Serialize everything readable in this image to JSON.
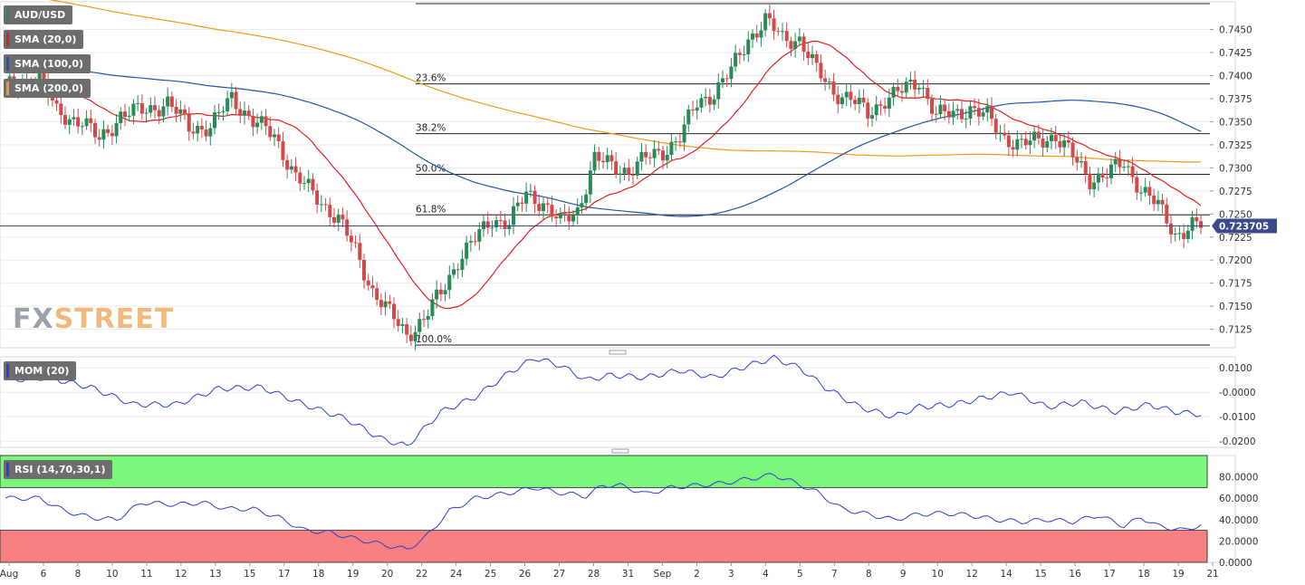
{
  "instrument": "AUD/USD",
  "watermark": {
    "part1": "FX",
    "part2": "STREET"
  },
  "colors": {
    "up": "#2a8a57",
    "down": "#d34848",
    "sma20": "#e02020",
    "sma100": "#2255aa",
    "sma200": "#f29a1c",
    "momentum": "#2b3fd6",
    "rsi": "#2b3fd6",
    "rsi_overbought_zone": "#7cf77c",
    "rsi_oversold_zone": "#f98080",
    "current_price_line": "#3a4a8a"
  },
  "legend": {
    "sma20": "SMA (20,0)",
    "sma100": "SMA (100,0)",
    "sma200": "SMA (200,0)",
    "momentum": "MOM (20)",
    "rsi": "RSI (14,70,30,1)"
  },
  "chart_data": [
    {
      "type": "candlestick",
      "title": "AUD/USD",
      "price_axis_ticks": [
        "0.7450",
        "0.7425",
        "0.7400",
        "0.7375",
        "0.7350",
        "0.7325",
        "0.7300",
        "0.7275",
        "0.7250",
        "0.7225",
        "0.7200",
        "0.7175",
        "0.7150",
        "0.7125"
      ],
      "ylim": [
        0.7105,
        0.748
      ],
      "current_price_label": "0.723705",
      "current_price": 0.723705,
      "fibonacci": {
        "high": 0.7478,
        "low": 0.7108,
        "levels": [
          {
            "label": "23.6%",
            "value": 0.7391
          },
          {
            "label": "38.2%",
            "value": 0.7337
          },
          {
            "label": "50.0%",
            "value": 0.7293
          },
          {
            "label": "61.8%",
            "value": 0.7249
          },
          {
            "label": "100.0%",
            "value": 0.7108
          }
        ]
      },
      "x_axis_labels": [
        "Aug",
        "6",
        "8",
        "10",
        "11",
        "12",
        "13",
        "15",
        "17",
        "18",
        "19",
        "20",
        "22",
        "24",
        "25",
        "26",
        "27",
        "28",
        "31",
        "Sep",
        "2",
        "3",
        "4",
        "5",
        "7",
        "8",
        "9",
        "10",
        "12",
        "14",
        "15",
        "16",
        "17",
        "18",
        "19",
        "21"
      ],
      "close_anchors": [
        [
          0,
          0.7386
        ],
        [
          8,
          0.7398
        ],
        [
          12,
          0.736
        ],
        [
          18,
          0.735
        ],
        [
          22,
          0.733
        ],
        [
          27,
          0.7357
        ],
        [
          32,
          0.7362
        ],
        [
          38,
          0.737
        ],
        [
          43,
          0.7345
        ],
        [
          48,
          0.7343
        ],
        [
          53,
          0.7377
        ],
        [
          58,
          0.735
        ],
        [
          63,
          0.7335
        ],
        [
          68,
          0.729
        ],
        [
          73,
          0.7268
        ],
        [
          78,
          0.7244
        ],
        [
          82,
          0.721
        ],
        [
          86,
          0.7167
        ],
        [
          90,
          0.7142
        ],
        [
          94,
          0.712
        ],
        [
          98,
          0.7135
        ],
        [
          102,
          0.7165
        ],
        [
          106,
          0.72
        ],
        [
          110,
          0.7222
        ],
        [
          114,
          0.7245
        ],
        [
          118,
          0.724
        ],
        [
          122,
          0.7272
        ],
        [
          126,
          0.7262
        ],
        [
          130,
          0.724
        ],
        [
          134,
          0.7254
        ],
        [
          138,
          0.731
        ],
        [
          142,
          0.7302
        ],
        [
          146,
          0.7297
        ],
        [
          150,
          0.731
        ],
        [
          154,
          0.7318
        ],
        [
          158,
          0.7333
        ],
        [
          162,
          0.737
        ],
        [
          166,
          0.7382
        ],
        [
          170,
          0.7405
        ],
        [
          174,
          0.744
        ],
        [
          178,
          0.746
        ],
        [
          182,
          0.744
        ],
        [
          186,
          0.744
        ],
        [
          190,
          0.7405
        ],
        [
          194,
          0.7383
        ],
        [
          198,
          0.7375
        ],
        [
          202,
          0.7358
        ],
        [
          206,
          0.7375
        ],
        [
          210,
          0.7383
        ],
        [
          214,
          0.7395
        ],
        [
          218,
          0.7357
        ],
        [
          222,
          0.7358
        ],
        [
          226,
          0.7365
        ],
        [
          230,
          0.7355
        ],
        [
          234,
          0.7333
        ],
        [
          238,
          0.7325
        ],
        [
          242,
          0.733
        ],
        [
          246,
          0.7335
        ],
        [
          250,
          0.7312
        ],
        [
          254,
          0.7288
        ],
        [
          258,
          0.7293
        ],
        [
          262,
          0.7305
        ],
        [
          266,
          0.7278
        ],
        [
          270,
          0.7258
        ],
        [
          274,
          0.7228
        ],
        [
          278,
          0.7237
        ]
      ]
    },
    {
      "type": "line",
      "title": "MOM (20)",
      "y_axis_ticks": [
        "0.0100",
        "-0.0000",
        "-0.0100",
        "-0.0200"
      ],
      "ylim": [
        -0.0225,
        0.0145
      ],
      "anchors": [
        [
          0,
          0.005
        ],
        [
          10,
          0.006
        ],
        [
          20,
          0.002
        ],
        [
          30,
          -0.005
        ],
        [
          40,
          -0.005
        ],
        [
          50,
          0.0015
        ],
        [
          60,
          0.002
        ],
        [
          70,
          -0.005
        ],
        [
          80,
          -0.011
        ],
        [
          88,
          -0.019
        ],
        [
          94,
          -0.022
        ],
        [
          102,
          -0.008
        ],
        [
          110,
          -0.002
        ],
        [
          118,
          0.008
        ],
        [
          124,
          0.014
        ],
        [
          130,
          0.011
        ],
        [
          136,
          0.005
        ],
        [
          142,
          0.007
        ],
        [
          150,
          0.006
        ],
        [
          158,
          0.009
        ],
        [
          166,
          0.006
        ],
        [
          174,
          0.011
        ],
        [
          180,
          0.014
        ],
        [
          186,
          0.01
        ],
        [
          192,
          0.002
        ],
        [
          200,
          -0.006
        ],
        [
          208,
          -0.01
        ],
        [
          214,
          -0.006
        ],
        [
          222,
          -0.005
        ],
        [
          230,
          -0.002
        ],
        [
          236,
          0.0
        ],
        [
          244,
          -0.006
        ],
        [
          252,
          -0.004
        ],
        [
          260,
          -0.008
        ],
        [
          268,
          -0.005
        ],
        [
          274,
          -0.008
        ],
        [
          280,
          -0.009
        ]
      ]
    },
    {
      "type": "line",
      "title": "RSI (14,70,30,1)",
      "y_axis_ticks": [
        "80.0000",
        "60.0000",
        "40.0000",
        "20.0000",
        "0.0000"
      ],
      "ylim": [
        0,
        100
      ],
      "overbought": 70,
      "oversold": 30,
      "anchors": [
        [
          0,
          60
        ],
        [
          8,
          60
        ],
        [
          14,
          48
        ],
        [
          20,
          42
        ],
        [
          26,
          40
        ],
        [
          32,
          56
        ],
        [
          40,
          54
        ],
        [
          46,
          56
        ],
        [
          52,
          50
        ],
        [
          58,
          50
        ],
        [
          64,
          42
        ],
        [
          70,
          30
        ],
        [
          76,
          28
        ],
        [
          82,
          22
        ],
        [
          88,
          17
        ],
        [
          94,
          12
        ],
        [
          98,
          22
        ],
        [
          104,
          48
        ],
        [
          110,
          60
        ],
        [
          118,
          65
        ],
        [
          124,
          70
        ],
        [
          130,
          65
        ],
        [
          136,
          62
        ],
        [
          140,
          72
        ],
        [
          144,
          72
        ],
        [
          150,
          64
        ],
        [
          156,
          70
        ],
        [
          162,
          72
        ],
        [
          168,
          74
        ],
        [
          174,
          78
        ],
        [
          180,
          82
        ],
        [
          184,
          76
        ],
        [
          190,
          66
        ],
        [
          196,
          50
        ],
        [
          202,
          45
        ],
        [
          208,
          40
        ],
        [
          214,
          45
        ],
        [
          220,
          46
        ],
        [
          226,
          44
        ],
        [
          232,
          40
        ],
        [
          238,
          38
        ],
        [
          244,
          40
        ],
        [
          250,
          38
        ],
        [
          256,
          44
        ],
        [
          262,
          34
        ],
        [
          266,
          42
        ],
        [
          270,
          34
        ],
        [
          276,
          30
        ],
        [
          280,
          35
        ]
      ]
    }
  ]
}
